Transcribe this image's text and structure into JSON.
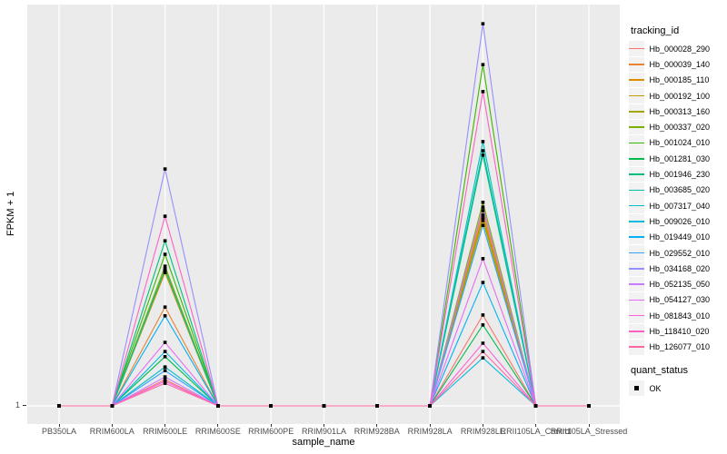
{
  "axes": {
    "y_title": "FPKM + 1",
    "x_title": "sample_name",
    "y_tick_labels": [
      "1"
    ]
  },
  "legend": {
    "tracking_title": "tracking_id",
    "quant_title": "quant_status",
    "quant_items": [
      {
        "label": "OK",
        "marker": "filled-black-square"
      }
    ]
  },
  "style": {
    "panel_bg": "#EBEBEB",
    "grid_color": "#FFFFFF",
    "tick_color": "#333333",
    "tick_label_color": "#4D4D4D",
    "legend_key_bg": "#F2F2F2",
    "point_color": "#000000"
  },
  "chart_data": {
    "type": "line",
    "title": "",
    "xlabel": "sample_name",
    "ylabel": "FPKM + 1",
    "legend_position": "right",
    "grid": "white major gridlines on grey panel",
    "marker": "black filled square at every data point",
    "y_axis": {
      "tick_labels": [
        "1"
      ],
      "baseline_value": 1,
      "value_units": "relative height fraction above baseline (FPKM+1 = 1); only tick '1' is labeled"
    },
    "categories": [
      "PB350LA",
      "RRIM600LA",
      "RRIM600LE",
      "RRIM600SE",
      "RRIM600PE",
      "RRIM901LA",
      "RRIM928BA",
      "RRIM928LA",
      "RRIM928LE",
      "RRII105LA_Control",
      "RRII105LA_Stressed"
    ],
    "peak_samples": [
      "RRIM600LE",
      "RRIM928LE"
    ],
    "quant_status": "OK",
    "series": [
      {
        "name": "Hb_000028_290",
        "color": "#F8766D",
        "values": [
          0,
          0,
          0.066,
          0,
          0,
          0,
          0,
          0,
          0.229,
          0,
          0
        ]
      },
      {
        "name": "Hb_000039_140",
        "color": "#EA8331",
        "values": [
          0,
          0,
          0.249,
          0,
          0,
          0,
          0,
          0,
          0.492,
          0,
          0
        ]
      },
      {
        "name": "Hb_000185_110",
        "color": "#D89000",
        "values": [
          0,
          0,
          0.336,
          0,
          0,
          0,
          0,
          0,
          0.481,
          0,
          0
        ]
      },
      {
        "name": "Hb_000192_100",
        "color": "#C09B00",
        "values": [
          0,
          0,
          0.341,
          0,
          0,
          0,
          0,
          0,
          0.474,
          0,
          0
        ]
      },
      {
        "name": "Hb_000313_160",
        "color": "#A3A500",
        "values": [
          0,
          0,
          0.346,
          0,
          0,
          0,
          0,
          0,
          0.467,
          0,
          0
        ]
      },
      {
        "name": "Hb_000337_020",
        "color": "#7CAE00",
        "values": [
          0,
          0,
          0.352,
          0,
          0,
          0,
          0,
          0,
          0.513,
          0,
          0
        ]
      },
      {
        "name": "Hb_001024_010",
        "color": "#39B600",
        "values": [
          0,
          0,
          0.382,
          0,
          0,
          0,
          0,
          0,
          0.86,
          0,
          0
        ]
      },
      {
        "name": "Hb_001281_030",
        "color": "#00BB4E",
        "values": [
          0,
          0,
          0.124,
          0,
          0,
          0,
          0,
          0,
          0.204,
          0,
          0
        ]
      },
      {
        "name": "Hb_001946_230",
        "color": "#00BF7D",
        "values": [
          0,
          0,
          0.416,
          0,
          0,
          0,
          0,
          0,
          0.632,
          0,
          0
        ]
      },
      {
        "name": "Hb_003685_020",
        "color": "#00C1A3",
        "values": [
          0,
          0,
          0.343,
          0,
          0,
          0,
          0,
          0,
          0.643,
          0,
          0
        ]
      },
      {
        "name": "Hb_007317_040",
        "color": "#00BFC4",
        "values": [
          0,
          0,
          0.098,
          0,
          0,
          0,
          0,
          0,
          0.666,
          0,
          0
        ]
      },
      {
        "name": "Hb_009026_010",
        "color": "#00BAE0",
        "values": [
          0,
          0,
          0.137,
          0,
          0,
          0,
          0,
          0,
          0.121,
          0,
          0
        ]
      },
      {
        "name": "Hb_019449_010",
        "color": "#00B0F6",
        "values": [
          0,
          0,
          0.227,
          0,
          0,
          0,
          0,
          0,
          0.311,
          0,
          0
        ]
      },
      {
        "name": "Hb_029552_010",
        "color": "#35A2FF",
        "values": [
          0,
          0,
          0.089,
          0,
          0,
          0,
          0,
          0,
          0.455,
          0,
          0
        ]
      },
      {
        "name": "Hb_034168_020",
        "color": "#9590FF",
        "values": [
          0,
          0,
          0.597,
          0,
          0,
          0,
          0,
          0,
          0.963,
          0,
          0
        ]
      },
      {
        "name": "Hb_052135_050",
        "color": "#C77CFF",
        "values": [
          0,
          0,
          0.073,
          0,
          0,
          0,
          0,
          0,
          0.501,
          0,
          0
        ]
      },
      {
        "name": "Hb_054127_030",
        "color": "#E76BF3",
        "values": [
          0,
          0,
          0.16,
          0,
          0,
          0,
          0,
          0,
          0.371,
          0,
          0
        ]
      },
      {
        "name": "Hb_081843_010",
        "color": "#FA62DB",
        "values": [
          0,
          0,
          0.062,
          0,
          0,
          0,
          0,
          0,
          0.158,
          0,
          0
        ]
      },
      {
        "name": "Hb_118410_020",
        "color": "#FF61C3",
        "values": [
          0,
          0,
          0.478,
          0,
          0,
          0,
          0,
          0,
          0.792,
          0,
          0
        ]
      },
      {
        "name": "Hb_126077_010",
        "color": "#FF67A4",
        "values": [
          0,
          0,
          0.057,
          0,
          0,
          0,
          0,
          0,
          0.137,
          0,
          0
        ]
      }
    ]
  }
}
